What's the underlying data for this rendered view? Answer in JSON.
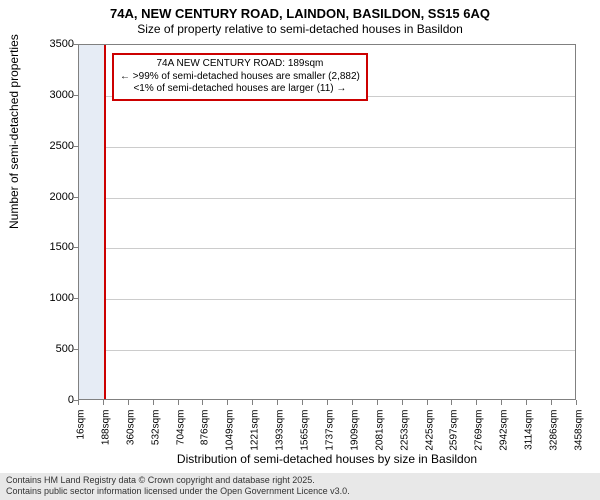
{
  "title": {
    "line1": "74A, NEW CENTURY ROAD, LAINDON, BASILDON, SS15 6AQ",
    "line2": "Size of property relative to semi-detached houses in Basildon"
  },
  "chart": {
    "type": "histogram-reference",
    "xlabel": "Distribution of semi-detached houses by size in Basildon",
    "ylabel": "Number of semi-detached properties",
    "ylim": [
      0,
      3500
    ],
    "yticks": [
      0,
      500,
      1000,
      1500,
      2000,
      2500,
      3000,
      3500
    ],
    "xlim": [
      16,
      3458
    ],
    "xticks": [
      16,
      188,
      360,
      532,
      704,
      876,
      1049,
      1221,
      1393,
      1565,
      1737,
      1909,
      2081,
      2253,
      2425,
      2597,
      2769,
      2942,
      3114,
      3286,
      3458
    ],
    "xtick_suffix": "sqm",
    "highlight_band": {
      "start": 16,
      "end": 188,
      "color": "#e6ecf5"
    },
    "ref_line": {
      "value": 189,
      "color": "#cc0000"
    },
    "grid_color": "#cccccc",
    "axis_color": "#808080",
    "background_color": "#ffffff",
    "tick_fontsize": 10,
    "label_fontsize": 12
  },
  "annotation": {
    "line1": "74A NEW CENTURY ROAD: 189sqm",
    "line2": "← >99% of semi-detached houses are smaller (2,882)",
    "line3": "<1% of semi-detached houses are larger (11) →",
    "border_color": "#cc0000",
    "fontsize": 10
  },
  "footer": {
    "line1": "Contains HM Land Registry data © Crown copyright and database right 2025.",
    "line2": "Contains public sector information licensed under the Open Government Licence v3.0.",
    "background": "#e8e8e8"
  }
}
